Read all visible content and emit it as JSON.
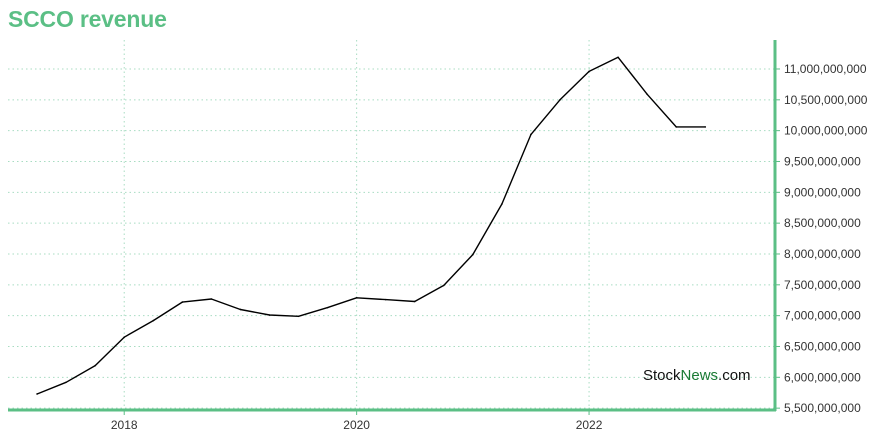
{
  "chart_data": {
    "type": "line",
    "title": "SCCO revenue",
    "xlabel": "",
    "ylabel": "",
    "x": [
      2017.25,
      2017.5,
      2017.75,
      2018.0,
      2018.25,
      2018.5,
      2018.75,
      2019.0,
      2019.25,
      2019.5,
      2019.75,
      2020.0,
      2020.25,
      2020.5,
      2020.75,
      2021.0,
      2021.25,
      2021.5,
      2021.75,
      2022.0,
      2022.25,
      2022.5,
      2022.75,
      2023.0
    ],
    "series": [
      {
        "values": [
          5730000000,
          5920000000,
          6190000000,
          6650000000,
          6920000000,
          7220000000,
          7270000000,
          7100000000,
          7010000000,
          6990000000,
          7130000000,
          7290000000,
          7260000000,
          7230000000,
          7490000000,
          7990000000,
          8810000000,
          9940000000,
          10500000000,
          10960000000,
          11190000000,
          10590000000,
          10060000000,
          10060000000
        ]
      }
    ],
    "xlim": [
      2017.0,
      2023.6
    ],
    "ylim": [
      5470000000,
      11470000000
    ],
    "x_ticks": [
      2018,
      2020,
      2022
    ],
    "x_tick_labels": [
      "2018",
      "2020",
      "2022"
    ],
    "y_ticks": [
      5500000000,
      6000000000,
      6500000000,
      7000000000,
      7500000000,
      8000000000,
      8500000000,
      9000000000,
      9500000000,
      10000000000,
      10500000000,
      11000000000
    ],
    "y_tick_labels": [
      "5,500,000,000",
      "6,000,000,000",
      "6,500,000,000",
      "7,000,000,000",
      "7,500,000,000",
      "8,000,000,000",
      "8,500,000,000",
      "9,000,000,000",
      "9,500,000,000",
      "10,000,000,000",
      "10,500,000,000",
      "11,000,000,000"
    ],
    "grid": true,
    "legend": "none",
    "y_axis_side": "right",
    "colors": {
      "title": "#5bbf85",
      "axis": "#5bbf85",
      "grid": "#a8dcc2",
      "line": "#000000"
    }
  },
  "watermark": {
    "part1": "Stock",
    "part2": "News",
    "part3": ".com",
    "color1": "#111111",
    "color2": "#1a7a34"
  }
}
